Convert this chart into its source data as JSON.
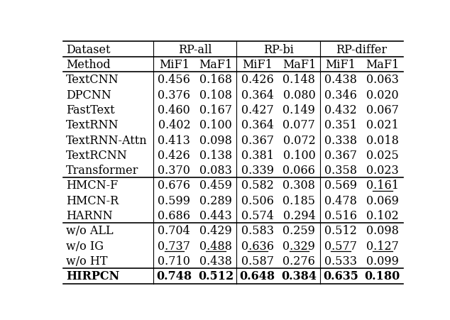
{
  "rows": [
    [
      "TextCNN",
      "0.456",
      "0.168",
      "0.426",
      "0.148",
      "0.438",
      "0.063"
    ],
    [
      "DPCNN",
      "0.376",
      "0.108",
      "0.364",
      "0.080",
      "0.346",
      "0.020"
    ],
    [
      "FastText",
      "0.460",
      "0.167",
      "0.427",
      "0.149",
      "0.432",
      "0.067"
    ],
    [
      "TextRNN",
      "0.402",
      "0.100",
      "0.364",
      "0.077",
      "0.351",
      "0.021"
    ],
    [
      "TextRNN-Attn",
      "0.413",
      "0.098",
      "0.367",
      "0.072",
      "0.338",
      "0.018"
    ],
    [
      "TextRCNN",
      "0.426",
      "0.138",
      "0.381",
      "0.100",
      "0.367",
      "0.025"
    ],
    [
      "Transformer",
      "0.370",
      "0.083",
      "0.339",
      "0.066",
      "0.358",
      "0.023"
    ],
    [
      "HMCN-F",
      "0.676",
      "0.459",
      "0.582",
      "0.308",
      "0.569",
      "0.161"
    ],
    [
      "HMCN-R",
      "0.599",
      "0.289",
      "0.506",
      "0.185",
      "0.478",
      "0.069"
    ],
    [
      "HARNN",
      "0.686",
      "0.443",
      "0.574",
      "0.294",
      "0.516",
      "0.102"
    ],
    [
      "w/o ALL",
      "0.704",
      "0.429",
      "0.583",
      "0.259",
      "0.512",
      "0.098"
    ],
    [
      "w/o IG",
      "0.737",
      "0.488",
      "0.636",
      "0.329",
      "0.577",
      "0.127"
    ],
    [
      "w/o HT",
      "0.710",
      "0.438",
      "0.587",
      "0.276",
      "0.533",
      "0.099"
    ],
    [
      "HIRPCN",
      "0.748",
      "0.512",
      "0.648",
      "0.384",
      "0.635",
      "0.180"
    ]
  ],
  "underline_cells": [
    [
      7,
      6
    ],
    [
      11,
      1
    ],
    [
      11,
      2
    ],
    [
      11,
      3
    ],
    [
      11,
      4
    ],
    [
      11,
      5
    ],
    [
      11,
      6
    ]
  ],
  "bold_rows": [
    13
  ],
  "font_size": 11.5,
  "font_family": "DejaVu Serif",
  "bg_color": "#ffffff",
  "line_color": "#000000"
}
